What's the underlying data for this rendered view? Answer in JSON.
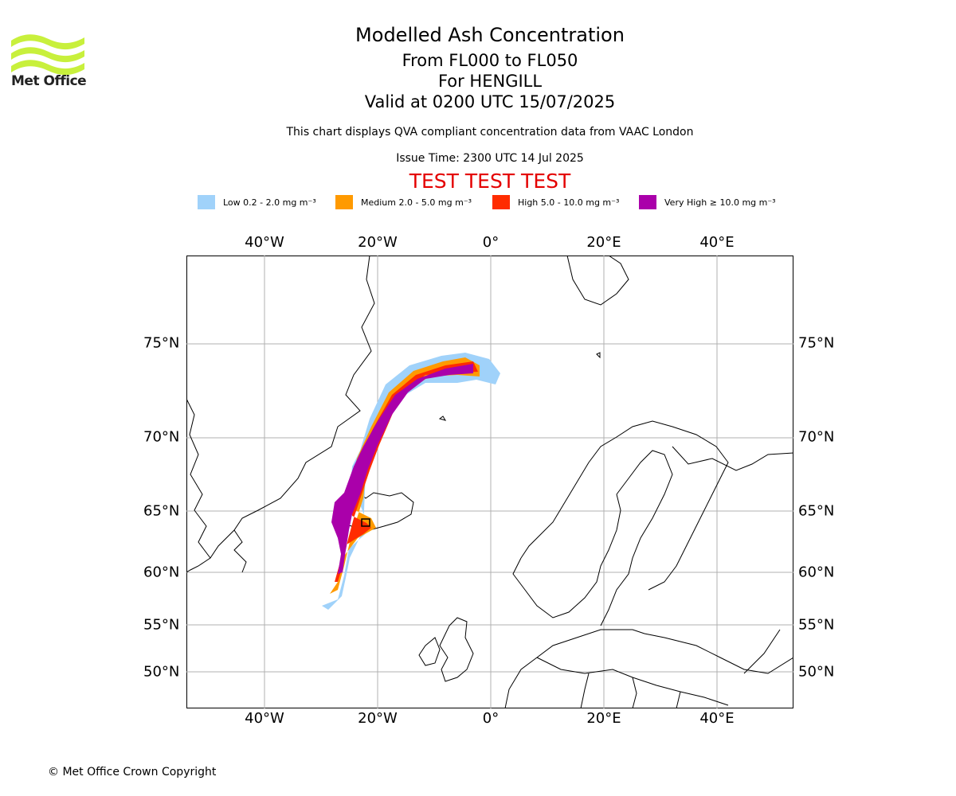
{
  "header": {
    "title": "Modelled Ash Concentration",
    "subtitle_levels": "From FL000 to FL050",
    "subtitle_volcano": "For HENGILL",
    "subtitle_valid": "Valid at 0200 UTC 15/07/2025",
    "description": "This chart displays QVA compliant concentration data from VAAC London",
    "issue_time": "Issue Time: 2300 UTC 14 Jul 2025",
    "test_banner": "TEST TEST TEST"
  },
  "logo": {
    "text": "Met Office",
    "color": "#c8f03c"
  },
  "legend": [
    {
      "label": "Low 0.2 - 2.0 mg m⁻³",
      "color": "#a0d2fa"
    },
    {
      "label": "Medium 2.0 - 5.0 mg m⁻³",
      "color": "#ff9a00"
    },
    {
      "label": "High 5.0 - 10.0 mg m⁻³",
      "color": "#ff2c00"
    },
    {
      "label": "Very High ≥ 10.0 mg m⁻³",
      "color": "#aa00aa"
    }
  ],
  "map": {
    "lon_labels": [
      "40°W",
      "20°W",
      "0°",
      "20°E",
      "40°E"
    ],
    "lat_labels": [
      "75°N",
      "70°N",
      "65°N",
      "60°N",
      "55°N",
      "50°N"
    ],
    "gridline_color": "#b0b0b0"
  },
  "footer": {
    "copyright": "© Met Office Crown Copyright"
  }
}
